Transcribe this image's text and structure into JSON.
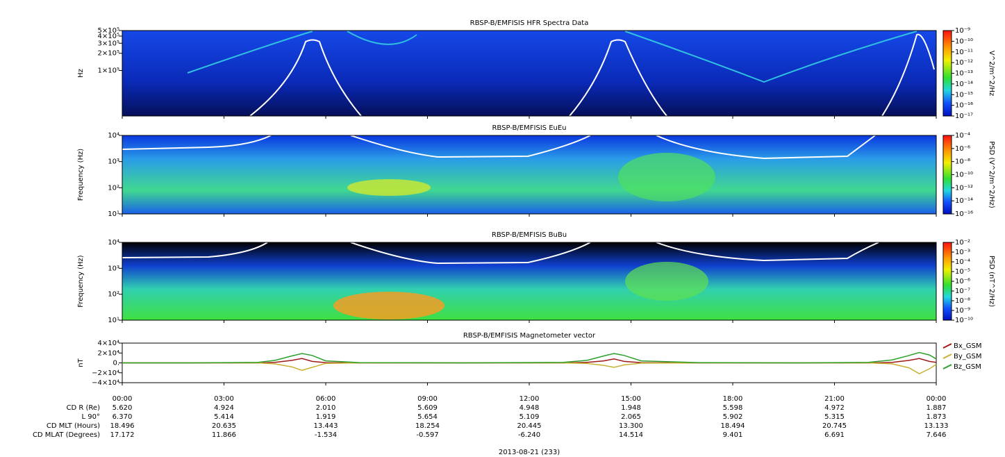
{
  "chart_data": [
    {
      "type": "spectrogram",
      "title": "RBSP-B/EMFISIS  HFR Spectra Data",
      "ylabel": "Hz",
      "log_y": true,
      "ylim": [
        16000,
        500000
      ],
      "yticks": [
        {
          "value": 500000,
          "label": "5×10⁵"
        },
        {
          "value": 400000,
          "label": "4×10⁵"
        },
        {
          "value": 300000,
          "label": "3×10⁵"
        },
        {
          "value": 200000,
          "label": "2×10⁵"
        },
        {
          "value": 100000,
          "label": "1×10⁵"
        }
      ],
      "colorbar": {
        "label": "V^2/m^2/Hz",
        "ticks": [
          {
            "value": 1e-09,
            "label": "10⁻⁹"
          },
          {
            "value": 1e-10,
            "label": "10⁻¹⁰"
          },
          {
            "value": 1e-11,
            "label": "10⁻¹¹"
          },
          {
            "value": 1e-12,
            "label": "10⁻¹²"
          },
          {
            "value": 1e-13,
            "label": "10⁻¹³"
          },
          {
            "value": 1e-14,
            "label": "10⁻¹⁴"
          },
          {
            "value": 1e-15,
            "label": "10⁻¹⁵"
          },
          {
            "value": 1e-16,
            "label": "10⁻¹⁶"
          },
          {
            "value": 1e-17,
            "label": "10⁻¹⁷"
          }
        ]
      }
    },
    {
      "type": "spectrogram",
      "title": "RBSP-B/EMFISIS  EuEu",
      "ylabel": "Frequency (Hz)",
      "log_y": true,
      "ylim": [
        10,
        10000
      ],
      "yticks": [
        {
          "value": 10000,
          "label": "10⁴"
        },
        {
          "value": 1000,
          "label": "10³"
        },
        {
          "value": 100,
          "label": "10²"
        },
        {
          "value": 10,
          "label": "10¹"
        }
      ],
      "colorbar": {
        "label": "PSD (V^2/m^2/Hz)",
        "ticks": [
          {
            "value": 0.0001,
            "label": "10⁻⁴"
          },
          {
            "value": 1e-06,
            "label": "10⁻⁶"
          },
          {
            "value": 1e-08,
            "label": "10⁻⁸"
          },
          {
            "value": 1e-10,
            "label": "10⁻¹⁰"
          },
          {
            "value": 1e-12,
            "label": "10⁻¹²"
          },
          {
            "value": 1e-14,
            "label": "10⁻¹⁴"
          },
          {
            "value": 1e-16,
            "label": "10⁻¹⁶"
          }
        ]
      }
    },
    {
      "type": "spectrogram",
      "title": "RBSP-B/EMFISIS  BuBu",
      "ylabel": "Frequency (Hz)",
      "log_y": true,
      "ylim": [
        10,
        10000
      ],
      "yticks": [
        {
          "value": 10000,
          "label": "10⁴"
        },
        {
          "value": 1000,
          "label": "10³"
        },
        {
          "value": 100,
          "label": "10²"
        },
        {
          "value": 10,
          "label": "10¹"
        }
      ],
      "colorbar": {
        "label": "PSD (nT^2/Hz)",
        "ticks": [
          {
            "value": 0.01,
            "label": "10⁻²"
          },
          {
            "value": 0.001,
            "label": "10⁻³"
          },
          {
            "value": 0.0001,
            "label": "10⁻⁴"
          },
          {
            "value": 1e-05,
            "label": "10⁻⁵"
          },
          {
            "value": 1e-06,
            "label": "10⁻⁶"
          },
          {
            "value": 1e-07,
            "label": "10⁻⁷"
          },
          {
            "value": 1e-08,
            "label": "10⁻⁸"
          },
          {
            "value": 1e-09,
            "label": "10⁻⁹"
          },
          {
            "value": 1e-10,
            "label": "10⁻¹⁰"
          }
        ]
      }
    },
    {
      "type": "line",
      "title": "RBSP-B/EMFISIS  Magnetometer vector",
      "ylabel": "nT",
      "ylim": [
        -40000,
        40000
      ],
      "yticks": [
        {
          "value": 40000,
          "label": "4×10⁴"
        },
        {
          "value": 20000,
          "label": "2×10⁴"
        },
        {
          "value": 0,
          "label": "0."
        },
        {
          "value": -20000,
          "label": "−2×10⁴"
        },
        {
          "value": -40000,
          "label": "−4×10⁴"
        }
      ],
      "xlim": [
        0,
        24
      ],
      "xticks": [
        {
          "value": 0,
          "label": "00:00"
        },
        {
          "value": 3,
          "label": "03:00"
        },
        {
          "value": 6,
          "label": "06:00"
        },
        {
          "value": 9,
          "label": "09:00"
        },
        {
          "value": 12,
          "label": "12:00"
        },
        {
          "value": 15,
          "label": "15:00"
        },
        {
          "value": 18,
          "label": "18:00"
        },
        {
          "value": 21,
          "label": "21:00"
        },
        {
          "value": 24,
          "label": "00:00"
        }
      ],
      "x": [
        0,
        2,
        4,
        4.5,
        5,
        5.3,
        5.6,
        6,
        7,
        10,
        13,
        13.7,
        14.2,
        14.5,
        14.8,
        15.3,
        17,
        20,
        22,
        22.7,
        23.2,
        23.5,
        23.8,
        24
      ],
      "series": [
        {
          "name": "Bx_GSM",
          "color": "#a01818",
          "values": [
            0,
            0,
            0,
            1000,
            5000,
            9000,
            3000,
            500,
            0,
            0,
            0,
            1000,
            4000,
            8000,
            3000,
            500,
            0,
            0,
            0,
            1000,
            5000,
            9000,
            3000,
            1000
          ]
        },
        {
          "name": "By_GSM",
          "color": "#c8b030",
          "values": [
            0,
            0,
            0,
            -2000,
            -8000,
            -15000,
            -9000,
            -1000,
            0,
            0,
            0,
            -1000,
            -5000,
            -9000,
            -4000,
            -500,
            0,
            0,
            0,
            -2000,
            -10000,
            -22000,
            -12000,
            -3000
          ]
        },
        {
          "name": "Bz_GSM",
          "color": "#2aa02a",
          "values": [
            0,
            0,
            1000,
            5000,
            14000,
            19000,
            15000,
            4000,
            500,
            0,
            1000,
            5000,
            14000,
            19000,
            15000,
            4000,
            500,
            0,
            1000,
            6000,
            15000,
            21000,
            16000,
            8000
          ]
        }
      ]
    }
  ],
  "ephemeris": {
    "rows": [
      {
        "label": "CD R (Re)",
        "values": [
          "5.620",
          "4.924",
          "2.010",
          "5.609",
          "4.948",
          "1.948",
          "5.598",
          "4.972",
          "1.887"
        ]
      },
      {
        "label": "L 90°",
        "values": [
          "6.370",
          "5.414",
          "1.919",
          "5.654",
          "5.109",
          "2.065",
          "5.902",
          "5.315",
          "1.873"
        ]
      },
      {
        "label": "CD MLT (Hours)",
        "values": [
          "18.496",
          "20.635",
          "13.443",
          "18.254",
          "20.445",
          "13.300",
          "18.494",
          "20.745",
          "13.133"
        ]
      },
      {
        "label": "CD MLAT (Degrees)",
        "values": [
          "17.172",
          "11.866",
          "-1.534",
          "-0.597",
          "-6.240",
          "14.514",
          "9.401",
          "6.691",
          "7.646"
        ]
      }
    ],
    "date": "2013-08-21 (233)"
  }
}
